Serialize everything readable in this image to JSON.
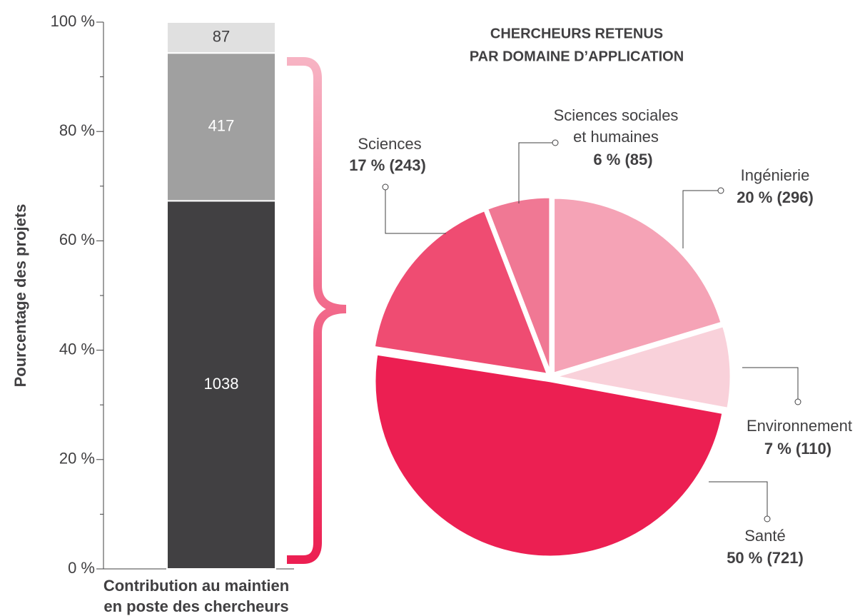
{
  "chart_data": [
    {
      "type": "bar",
      "stacked": "percent",
      "y_label": "Pourcentage des projets",
      "x_label": [
        "Contribution au maintien",
        "en poste des chercheurs"
      ],
      "series": [
        {
          "values": [
            1038
          ],
          "color": "#414042",
          "label_color": "#ffffff"
        },
        {
          "values": [
            417
          ],
          "color": "#a0a0a0",
          "label_color": "#ffffff"
        },
        {
          "values": [
            87
          ],
          "color": "#e0e0e0",
          "label_color": "#414042"
        }
      ],
      "ylim": [
        0,
        100
      ],
      "yticks": [
        {
          "value": 0,
          "label": "0 %"
        },
        {
          "value": 20,
          "label": "20 %"
        },
        {
          "value": 40,
          "label": "40 %"
        },
        {
          "value": 60,
          "label": "60 %"
        },
        {
          "value": 80,
          "label": "80 %"
        },
        {
          "value": 100,
          "label": "100 %"
        }
      ],
      "minor_yticks": [
        10,
        30,
        50,
        70,
        90
      ]
    },
    {
      "type": "pie",
      "title": [
        "CHERCHEURS RETENUS",
        "PAR DOMAINE D’APPLICATION"
      ],
      "categories": [
        [
          "Ingénierie"
        ],
        [
          "Environnement"
        ],
        [
          "Santé"
        ],
        [
          "Sciences"
        ],
        [
          "Sciences sociales",
          "et humaines"
        ]
      ],
      "values": [
        296,
        110,
        721,
        243,
        85
      ],
      "value_labels": [
        "20 % (296)",
        "7 % (110)",
        "50 % (721)",
        "17 % (243)",
        "6 % (85)"
      ],
      "colors": [
        "#f5a3b6",
        "#f9d1da",
        "#ec1f52",
        "#ef4c72",
        "#f07894"
      ]
    }
  ]
}
